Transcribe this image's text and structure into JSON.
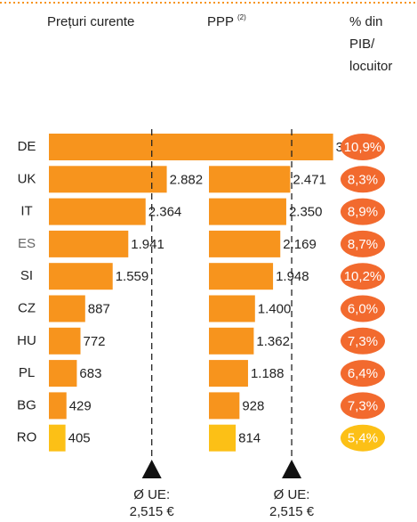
{
  "chart_data": [
    {
      "type": "bar",
      "orientation": "horizontal",
      "title": "Prețuri curente",
      "categories": [
        "DE",
        "UK",
        "IT",
        "ES",
        "SI",
        "CZ",
        "HU",
        "PL",
        "BG",
        "RO"
      ],
      "values": [
        3936,
        2882,
        2364,
        1941,
        1559,
        887,
        772,
        683,
        429,
        405
      ],
      "value_labels": [
        "3.936",
        "2.882",
        "2.364",
        "1.941",
        "1.559",
        "887",
        "772",
        "683",
        "429",
        "405"
      ],
      "colors": [
        "#f7941d",
        "#f7941d",
        "#f7941d",
        "#f7941d",
        "#f7941d",
        "#f7941d",
        "#f7941d",
        "#f7941d",
        "#f7941d",
        "#fcc016"
      ],
      "xlim": [
        0,
        4000
      ],
      "average": 2515,
      "average_label": [
        "Ø UE:",
        "2,515 €"
      ]
    },
    {
      "type": "bar",
      "orientation": "horizontal",
      "title": "PPP",
      "title_note": "(2)",
      "categories": [
        "DE",
        "UK",
        "IT",
        "ES",
        "SI",
        "CZ",
        "HU",
        "PL",
        "BG",
        "RO"
      ],
      "values": [
        3774,
        2471,
        2350,
        2169,
        1948,
        1400,
        1362,
        1188,
        928,
        814
      ],
      "value_labels": [
        "3.774",
        "2.471",
        "2.350",
        "2.169",
        "1.948",
        "1.400",
        "1.362",
        "1.188",
        "928",
        "814"
      ],
      "colors": [
        "#f7941d",
        "#f7941d",
        "#f7941d",
        "#f7941d",
        "#f7941d",
        "#f7941d",
        "#f7941d",
        "#f7941d",
        "#f7941d",
        "#fcc016"
      ],
      "xlim": [
        0,
        5000
      ],
      "average": 2515,
      "average_label": [
        "Ø UE:",
        "2,515 €"
      ]
    }
  ],
  "ratio_column": {
    "title": [
      "% din",
      "PIB/",
      "locuitor"
    ],
    "values": [
      10.9,
      8.3,
      8.9,
      8.7,
      10.2,
      6.0,
      7.3,
      6.4,
      7.3,
      5.4
    ],
    "value_labels": [
      "10,9%",
      "8,3%",
      "8,9%",
      "8,7%",
      "10,2%",
      "6,0%",
      "7,3%",
      "6,4%",
      "7,3%",
      "5,4%"
    ],
    "colors": [
      "#f26a2e",
      "#f26a2e",
      "#f26a2e",
      "#f26a2e",
      "#f26a2e",
      "#f26a2e",
      "#f26a2e",
      "#f26a2e",
      "#f26a2e",
      "#fcc016"
    ]
  }
}
